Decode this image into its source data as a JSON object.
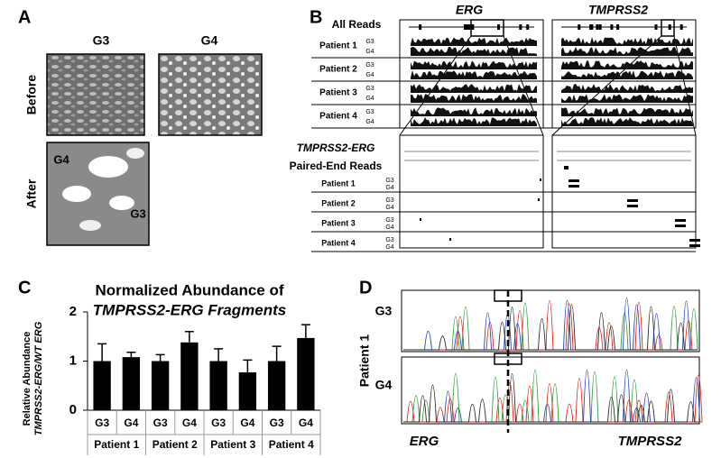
{
  "panels": {
    "a": {
      "label": "A",
      "columns": [
        "G3",
        "G4"
      ],
      "rows": [
        "Before",
        "After"
      ],
      "insets": [
        "G4",
        "G3"
      ]
    },
    "b": {
      "label": "B",
      "genes": [
        "ERG",
        "TMPRSS2"
      ],
      "top_title": "All Reads",
      "bottom_title": "TMPRSS2-ERG",
      "bottom_subtitle": "Paired-End Reads",
      "patients": [
        "Patient 1",
        "Patient 2",
        "Patient 3",
        "Patient 4"
      ],
      "samples": [
        "G3",
        "G4"
      ]
    },
    "c": {
      "label": "C"
    },
    "d": {
      "label": "D",
      "patient": "Patient 1",
      "samples": [
        "G3",
        "G4"
      ],
      "genes": [
        "ERG",
        "TMPRSS2"
      ]
    }
  },
  "chart_data": {
    "type": "bar",
    "title": "Normalized Abundance of",
    "subtitle": "TMPRSS2-ERG Fragments",
    "y_label": "Relative Abundance",
    "y_label_2": "TMPRSS2-ERG/WT ERG",
    "categories": [
      "G3",
      "G4",
      "G3",
      "G4",
      "G3",
      "G4",
      "G3",
      "G4"
    ],
    "groups": [
      "Patient 1",
      "Patient 2",
      "Patient 3",
      "Patient 4"
    ],
    "values": [
      1,
      1.08,
      1,
      1.38,
      1,
      0.77,
      1,
      1.47
    ],
    "errors": [
      0.35,
      0.1,
      0.13,
      0.22,
      0.25,
      0.25,
      0.3,
      0.27
    ],
    "color": "#000000",
    "ylim": [
      0,
      2
    ],
    "yticks": [
      0,
      1,
      2
    ]
  }
}
